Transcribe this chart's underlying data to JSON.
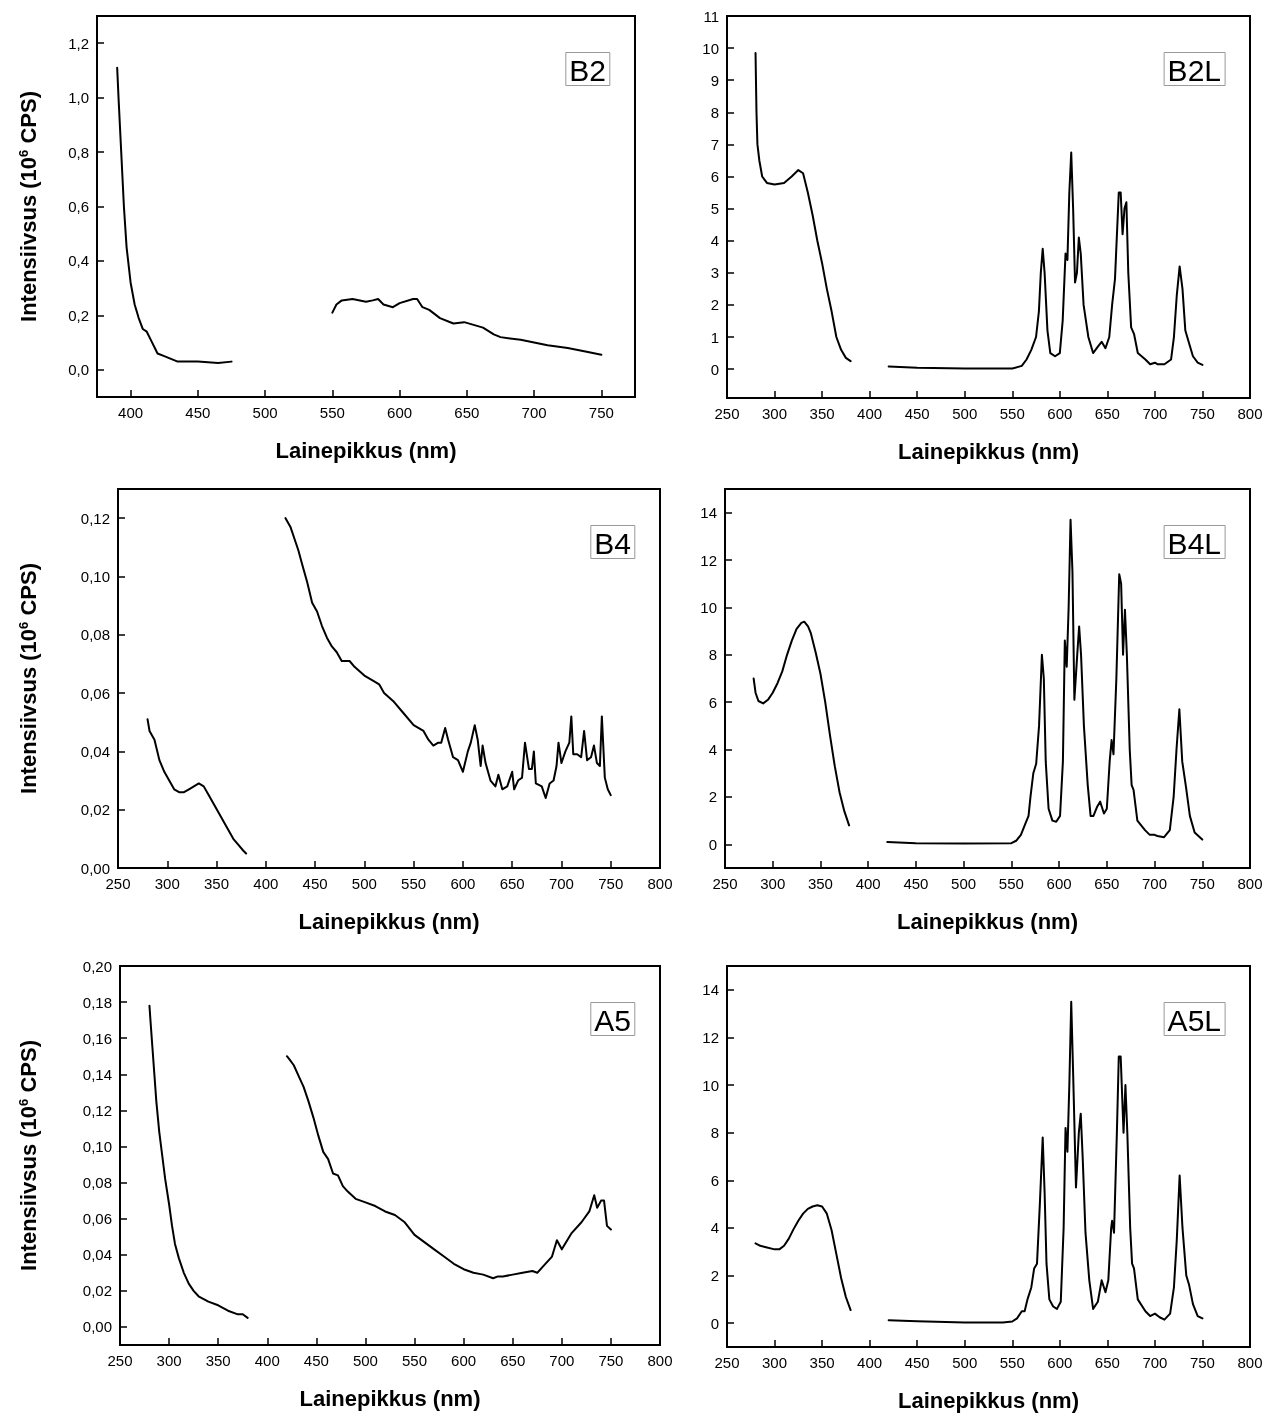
{
  "chart_data": [
    {
      "type": "line",
      "title": "B2",
      "xlabel": "Lainepikkus (nm)",
      "ylabel": "Intensiivsus (10$^{6}$ CPS)",
      "marker": "none",
      "line_style": "solid",
      "xlim": [
        375,
        775
      ],
      "xticks": [
        400,
        450,
        500,
        550,
        600,
        650,
        700,
        750
      ],
      "ylim": [
        -0.1,
        1.3
      ],
      "yticks": [
        {
          "value": 0,
          "label": "0,0"
        },
        {
          "value": 0.2,
          "label": "0,2"
        },
        {
          "value": 0.4,
          "label": "0,4"
        },
        {
          "value": 0.6,
          "label": "0,6"
        },
        {
          "value": 0.8,
          "label": "0,8"
        },
        {
          "value": 1.0,
          "label": "1,0"
        },
        {
          "value": 1.2,
          "label": "1,2"
        }
      ],
      "series": [
        {
          "color": "#000000",
          "x": [
            390,
            391,
            393,
            395,
            397,
            400,
            403,
            406,
            409,
            412,
            415,
            418,
            420,
            425,
            430,
            435,
            450,
            465,
            475
          ],
          "values": [
            1.11,
            1.0,
            0.8,
            0.6,
            0.45,
            0.32,
            0.24,
            0.19,
            0.15,
            0.14,
            0.11,
            0.08,
            0.06,
            0.05,
            0.04,
            0.03,
            0.03,
            0.025,
            0.03
          ]
        },
        {
          "color": "#000000",
          "x": [
            550,
            553,
            557,
            565,
            575,
            580,
            584,
            588,
            595,
            600,
            610,
            613,
            617,
            622,
            630,
            640,
            648,
            655,
            662,
            670,
            675,
            690,
            700,
            710,
            725,
            740,
            750
          ],
          "values": [
            0.21,
            0.24,
            0.255,
            0.26,
            0.25,
            0.255,
            0.26,
            0.24,
            0.23,
            0.245,
            0.26,
            0.26,
            0.23,
            0.22,
            0.19,
            0.17,
            0.175,
            0.165,
            0.155,
            0.13,
            0.12,
            0.11,
            0.1,
            0.09,
            0.08,
            0.065,
            0.055
          ]
        }
      ]
    },
    {
      "type": "line",
      "title": "B2L",
      "xlabel": "Lainepikkus (nm)",
      "marker": "none",
      "line_style": "solid",
      "xlim": [
        250,
        800
      ],
      "xticks": [
        250,
        300,
        350,
        400,
        450,
        500,
        550,
        600,
        650,
        700,
        750,
        800
      ],
      "ylim": [
        -0.9,
        11
      ],
      "yticks": [
        0,
        1,
        2,
        3,
        4,
        5,
        6,
        7,
        8,
        9,
        10,
        11
      ],
      "series": [
        {
          "color": "#000000",
          "x": [
            280,
            281,
            282,
            284,
            287,
            292,
            300,
            310,
            318,
            325,
            330,
            335,
            340,
            345,
            350,
            355,
            360,
            365,
            370,
            375,
            380
          ],
          "values": [
            9.85,
            8,
            7,
            6.5,
            6.0,
            5.8,
            5.75,
            5.8,
            6.0,
            6.2,
            6.1,
            5.5,
            4.8,
            4.0,
            3.3,
            2.5,
            1.8,
            1.0,
            0.6,
            0.35,
            0.25
          ]
        },
        {
          "color": "#000000",
          "x": [
            420,
            450,
            500,
            550,
            560,
            565,
            570,
            575,
            578,
            580,
            582,
            584,
            587,
            590,
            595,
            600,
            603,
            606,
            608,
            610,
            612,
            614,
            616,
            618,
            620,
            622,
            625,
            630,
            635,
            640,
            644,
            648,
            652,
            655,
            658,
            662,
            664,
            666,
            668,
            670,
            672,
            675,
            678,
            682,
            690,
            695,
            700,
            703,
            710,
            717,
            720,
            723,
            726,
            729,
            732,
            736,
            740,
            745,
            750
          ],
          "values": [
            0.08,
            0.04,
            0.02,
            0.02,
            0.1,
            0.3,
            0.6,
            1.0,
            1.8,
            3.0,
            3.75,
            3.0,
            1.2,
            0.5,
            0.4,
            0.5,
            1.5,
            3.6,
            3.4,
            5.5,
            6.75,
            5.0,
            2.7,
            3.0,
            4.1,
            3.6,
            2.0,
            1.0,
            0.5,
            0.7,
            0.85,
            0.65,
            1.0,
            2.0,
            2.8,
            5.5,
            5.5,
            4.2,
            5.0,
            5.2,
            3.0,
            1.3,
            1.1,
            0.5,
            0.3,
            0.15,
            0.2,
            0.15,
            0.15,
            0.3,
            1.0,
            2.3,
            3.2,
            2.5,
            1.2,
            0.8,
            0.4,
            0.2,
            0.13
          ]
        }
      ]
    },
    {
      "type": "line",
      "title": "B4",
      "xlabel": "Lainepikkus (nm)",
      "ylabel": "Intensiivsus (10$^{6}$ CPS)",
      "marker": "none",
      "line_style": "solid",
      "xlim": [
        250,
        800
      ],
      "xticks": [
        250,
        300,
        350,
        400,
        450,
        500,
        550,
        600,
        650,
        700,
        750,
        800
      ],
      "ylim": [
        0,
        0.13
      ],
      "yticks": [
        {
          "value": 0,
          "label": "0,00"
        },
        {
          "value": 0.02,
          "label": "0,02"
        },
        {
          "value": 0.04,
          "label": "0,04"
        },
        {
          "value": 0.06,
          "label": "0,06"
        },
        {
          "value": 0.08,
          "label": "0,08"
        },
        {
          "value": 0.1,
          "label": "0,10"
        },
        {
          "value": 0.12,
          "label": "0,12"
        }
      ],
      "series": [
        {
          "color": "#000000",
          "x": [
            280,
            282,
            287,
            292,
            297,
            302,
            307,
            312,
            317,
            322,
            327,
            332,
            337,
            342,
            347,
            352,
            357,
            362,
            367,
            372,
            377,
            380
          ],
          "values": [
            0.051,
            0.047,
            0.044,
            0.037,
            0.033,
            0.03,
            0.027,
            0.026,
            0.026,
            0.027,
            0.028,
            0.029,
            0.028,
            0.025,
            0.022,
            0.019,
            0.016,
            0.013,
            0.01,
            0.008,
            0.006,
            0.005
          ]
        },
        {
          "color": "#000000",
          "x": [
            420,
            425,
            430,
            433,
            437,
            442,
            447,
            452,
            457,
            462,
            467,
            472,
            477,
            485,
            490,
            500,
            510,
            515,
            520,
            530,
            540,
            550,
            560,
            565,
            570,
            575,
            578,
            582,
            585,
            590,
            595,
            600,
            605,
            608,
            612,
            615,
            618,
            620,
            623,
            628,
            633,
            636,
            640,
            645,
            650,
            652,
            656,
            660,
            663,
            667,
            670,
            672,
            674,
            680,
            684,
            688,
            692,
            695,
            697,
            700,
            704,
            708,
            710,
            712,
            716,
            720,
            723,
            726,
            730,
            733,
            736,
            739,
            741,
            744,
            747,
            750
          ],
          "values": [
            0.12,
            0.117,
            0.112,
            0.109,
            0.104,
            0.098,
            0.091,
            0.088,
            0.083,
            0.079,
            0.076,
            0.074,
            0.071,
            0.071,
            0.069,
            0.066,
            0.064,
            0.063,
            0.06,
            0.057,
            0.053,
            0.049,
            0.047,
            0.044,
            0.042,
            0.043,
            0.043,
            0.048,
            0.044,
            0.038,
            0.037,
            0.033,
            0.04,
            0.043,
            0.049,
            0.044,
            0.035,
            0.042,
            0.036,
            0.03,
            0.028,
            0.032,
            0.027,
            0.028,
            0.033,
            0.027,
            0.03,
            0.031,
            0.043,
            0.034,
            0.034,
            0.04,
            0.029,
            0.028,
            0.024,
            0.029,
            0.03,
            0.035,
            0.043,
            0.036,
            0.04,
            0.043,
            0.052,
            0.039,
            0.039,
            0.038,
            0.047,
            0.037,
            0.038,
            0.042,
            0.036,
            0.035,
            0.052,
            0.031,
            0.027,
            0.025
          ]
        }
      ]
    },
    {
      "type": "line",
      "title": "B4L",
      "xlabel": "Lainepikkus (nm)",
      "marker": "none",
      "line_style": "solid",
      "xlim": [
        250,
        800
      ],
      "xticks": [
        250,
        300,
        350,
        400,
        450,
        500,
        550,
        600,
        650,
        700,
        750,
        800
      ],
      "ylim": [
        -1,
        15
      ],
      "yticks": [
        0,
        2,
        4,
        6,
        8,
        10,
        12,
        14
      ],
      "series": [
        {
          "color": "#000000",
          "x": [
            280,
            282,
            285,
            290,
            295,
            300,
            305,
            310,
            315,
            320,
            325,
            330,
            333,
            337,
            340,
            345,
            350,
            355,
            360,
            365,
            370,
            375,
            380
          ],
          "values": [
            7.0,
            6.4,
            6.05,
            5.95,
            6.1,
            6.4,
            6.8,
            7.3,
            8.0,
            8.6,
            9.1,
            9.35,
            9.4,
            9.2,
            8.9,
            8.1,
            7.2,
            6.0,
            4.6,
            3.3,
            2.2,
            1.4,
            0.8
          ]
        },
        {
          "color": "#000000",
          "x": [
            420,
            450,
            500,
            550,
            555,
            560,
            565,
            568,
            570,
            573,
            576,
            579,
            582,
            584,
            586,
            589,
            593,
            597,
            601,
            604,
            606,
            608,
            610,
            612,
            614,
            616,
            619,
            621,
            623,
            626,
            630,
            633,
            636,
            640,
            643,
            647,
            650,
            653,
            655,
            657,
            660,
            663,
            665,
            667,
            669,
            671,
            674,
            676,
            678,
            682,
            690,
            695,
            700,
            703,
            710,
            716,
            720,
            723,
            726,
            729,
            733,
            737,
            742,
            750
          ],
          "values": [
            0.1,
            0.05,
            0.03,
            0.05,
            0.15,
            0.4,
            0.9,
            1.2,
            2.0,
            3.0,
            3.4,
            5.0,
            8.0,
            7.0,
            3.5,
            1.5,
            1.0,
            0.95,
            1.2,
            3.5,
            8.6,
            7.5,
            10.0,
            13.7,
            11.5,
            6.1,
            8.0,
            9.2,
            8.0,
            5.0,
            2.5,
            1.2,
            1.2,
            1.6,
            1.8,
            1.3,
            1.5,
            3.5,
            4.4,
            3.8,
            7.0,
            11.4,
            11.0,
            8.0,
            9.9,
            8.0,
            4.0,
            2.5,
            2.3,
            1.0,
            0.6,
            0.4,
            0.4,
            0.35,
            0.3,
            0.6,
            2.0,
            4.0,
            5.7,
            3.5,
            2.4,
            1.2,
            0.5,
            0.2
          ]
        }
      ]
    },
    {
      "type": "line",
      "title": "A5",
      "xlabel": "Lainepikkus (nm)",
      "ylabel": "Intensiivsus (10$^{6}$ CPS)",
      "marker": "none",
      "line_style": "solid",
      "xlim": [
        250,
        800
      ],
      "xticks": [
        250,
        300,
        350,
        400,
        450,
        500,
        550,
        600,
        650,
        700,
        750,
        800
      ],
      "ylim": [
        -0.01,
        0.2
      ],
      "yticks": [
        {
          "value": 0,
          "label": "0,00"
        },
        {
          "value": 0.02,
          "label": "0,02"
        },
        {
          "value": 0.04,
          "label": "0,04"
        },
        {
          "value": 0.06,
          "label": "0,06"
        },
        {
          "value": 0.08,
          "label": "0,08"
        },
        {
          "value": 0.1,
          "label": "0,10"
        },
        {
          "value": 0.12,
          "label": "0,12"
        },
        {
          "value": 0.14,
          "label": "0,14"
        },
        {
          "value": 0.16,
          "label": "0,16"
        },
        {
          "value": 0.18,
          "label": "0,18"
        },
        {
          "value": 0.2,
          "label": "0,20"
        }
      ],
      "series": [
        {
          "color": "#000000",
          "x": [
            280,
            281,
            283,
            285,
            287,
            290,
            293,
            296,
            300,
            303,
            306,
            310,
            315,
            320,
            325,
            330,
            340,
            350,
            360,
            370,
            375,
            380
          ],
          "values": [
            0.178,
            0.17,
            0.155,
            0.14,
            0.125,
            0.108,
            0.095,
            0.082,
            0.068,
            0.056,
            0.046,
            0.038,
            0.03,
            0.024,
            0.02,
            0.017,
            0.014,
            0.012,
            0.009,
            0.007,
            0.007,
            0.005
          ]
        },
        {
          "color": "#000000",
          "x": [
            420,
            423,
            427,
            432,
            437,
            442,
            447,
            452,
            457,
            462,
            467,
            472,
            477,
            482,
            490,
            500,
            510,
            520,
            530,
            540,
            550,
            560,
            570,
            580,
            590,
            600,
            610,
            620,
            630,
            635,
            640,
            650,
            660,
            670,
            675,
            680,
            690,
            695,
            700,
            710,
            720,
            728,
            733,
            736,
            740,
            743,
            746,
            750
          ],
          "values": [
            0.15,
            0.148,
            0.145,
            0.139,
            0.133,
            0.125,
            0.116,
            0.106,
            0.097,
            0.093,
            0.085,
            0.084,
            0.078,
            0.075,
            0.071,
            0.069,
            0.067,
            0.064,
            0.062,
            0.058,
            0.051,
            0.047,
            0.043,
            0.039,
            0.035,
            0.032,
            0.03,
            0.029,
            0.027,
            0.028,
            0.028,
            0.029,
            0.03,
            0.031,
            0.03,
            0.033,
            0.039,
            0.048,
            0.043,
            0.052,
            0.058,
            0.064,
            0.073,
            0.066,
            0.07,
            0.07,
            0.056,
            0.054
          ]
        }
      ]
    },
    {
      "type": "line",
      "title": "A5L",
      "xlabel": "Lainepikkus (nm)",
      "marker": "none",
      "line_style": "solid",
      "xlim": [
        250,
        800
      ],
      "xticks": [
        250,
        300,
        350,
        400,
        450,
        500,
        550,
        600,
        650,
        700,
        750,
        800
      ],
      "ylim": [
        -1,
        15
      ],
      "yticks": [
        0,
        2,
        4,
        6,
        8,
        10,
        12,
        14
      ],
      "series": [
        {
          "color": "#000000",
          "x": [
            280,
            285,
            290,
            300,
            305,
            310,
            315,
            320,
            325,
            330,
            335,
            340,
            345,
            350,
            355,
            360,
            365,
            370,
            375,
            380
          ],
          "values": [
            3.35,
            3.25,
            3.2,
            3.1,
            3.1,
            3.25,
            3.55,
            3.95,
            4.3,
            4.6,
            4.8,
            4.9,
            4.95,
            4.9,
            4.6,
            3.9,
            2.9,
            1.9,
            1.1,
            0.55
          ]
        },
        {
          "color": "#000000",
          "x": [
            420,
            450,
            500,
            540,
            550,
            555,
            560,
            563,
            566,
            570,
            573,
            576,
            579,
            582,
            584,
            586,
            589,
            593,
            597,
            601,
            604,
            606,
            608,
            610,
            612,
            614,
            617,
            620,
            622,
            624,
            627,
            631,
            635,
            640,
            644,
            648,
            651,
            654,
            655,
            657,
            660,
            662,
            664,
            667,
            669,
            671,
            674,
            676,
            678,
            682,
            690,
            695,
            700,
            705,
            710,
            716,
            720,
            723,
            726,
            729,
            733,
            736,
            740,
            745,
            750
          ],
          "values": [
            0.12,
            0.08,
            0.03,
            0.03,
            0.07,
            0.2,
            0.5,
            0.5,
            1.0,
            1.5,
            2.3,
            2.5,
            5.0,
            7.8,
            5.5,
            2.5,
            1.0,
            0.7,
            0.6,
            0.9,
            4.0,
            8.2,
            7.2,
            10.0,
            13.5,
            10.5,
            5.7,
            8.0,
            8.8,
            7.0,
            3.8,
            1.8,
            0.6,
            0.9,
            1.8,
            1.3,
            1.8,
            4.0,
            4.3,
            3.8,
            8.0,
            11.2,
            11.2,
            8.0,
            10.0,
            8.0,
            4.0,
            2.5,
            2.3,
            1.0,
            0.5,
            0.3,
            0.4,
            0.25,
            0.15,
            0.4,
            1.5,
            3.5,
            6.2,
            4.0,
            2.0,
            1.6,
            0.8,
            0.3,
            0.2
          ]
        }
      ]
    }
  ]
}
